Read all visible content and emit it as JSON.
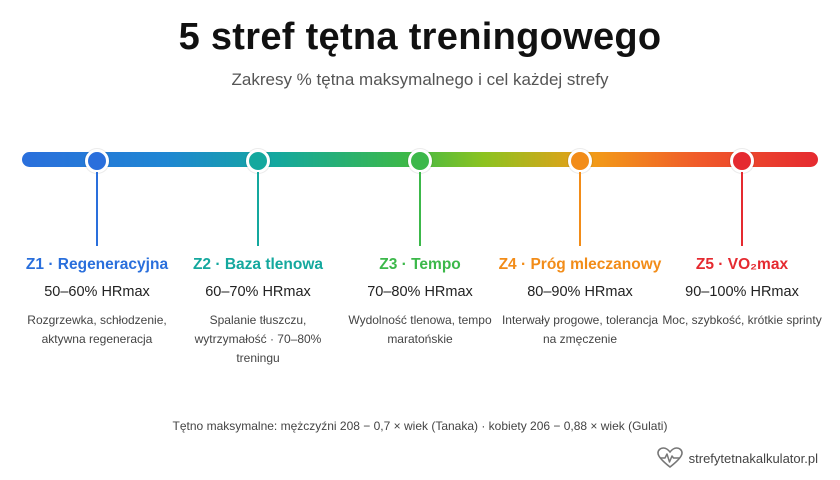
{
  "title": "5 stref tętna treningowego",
  "subtitle": "Zakresy % tętna maksymalnego i cel każdej strefy",
  "zones": [
    {
      "name": "Z1 · Regeneracyjna",
      "range": "50–60% HRmax",
      "desc": "Rozgrzewka, schłodzenie, aktywna regeneracja",
      "color": "#2a6fdc"
    },
    {
      "name": "Z2 · Baza tlenowa",
      "range": "60–70% HRmax",
      "desc": "Spalanie tłuszczu, wytrzymałość · 70–80% treningu",
      "color": "#14a89e"
    },
    {
      "name": "Z3 · Tempo",
      "range": "70–80% HRmax",
      "desc": "Wydolność tlenowa, tempo maratońskie",
      "color": "#3cb84a"
    },
    {
      "name": "Z4 · Próg mleczanowy",
      "range": "80–90% HRmax",
      "desc": "Interwały progowe, tolerancja na zmęczenie",
      "color": "#f28c18"
    },
    {
      "name": "Z5 · VO₂max",
      "range": "90–100% HRmax",
      "desc": "Moc, szybkość, krótkie sprinty",
      "color": "#e52a30"
    }
  ],
  "footnote": "Tętno maksymalne: mężczyźni 208 − 0,7 × wiek (Tanaka) · kobiety 206 − 0,88 × wiek (Gulati)",
  "brand": {
    "text": "strefytetnakalkulator.pl",
    "icon": "heart-pulse-icon"
  }
}
